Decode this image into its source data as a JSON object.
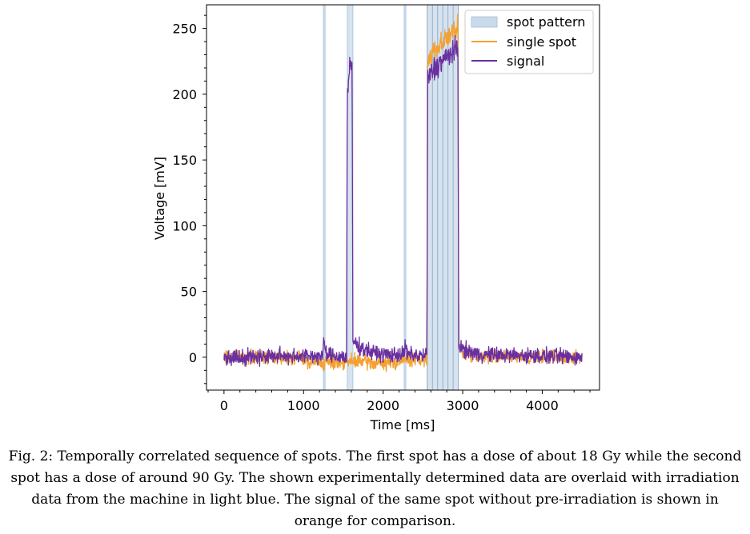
{
  "caption": "Fig. 2: Temporally correlated sequence of spots. The first spot has a dose of about 18 Gy while the second spot has a dose of around 90 Gy. The shown experimentally determined data are overlaid with irradiation data from the machine in light blue. The signal of the same spot without pre-irradiation is shown in orange for comparison.",
  "chart_data": {
    "type": "line",
    "xlabel": "Time [ms]",
    "ylabel": "Voltage [mV]",
    "xlim": [
      -220,
      4720
    ],
    "ylim": [
      -25,
      268
    ],
    "xticks": [
      0,
      1000,
      2000,
      3000,
      4000
    ],
    "yticks": [
      0,
      50,
      100,
      150,
      200,
      250
    ],
    "legend_position": "top-right",
    "grid": false,
    "colors": {
      "spot_pattern_fill": "#c9daea",
      "spot_pattern_line": "#aec8df",
      "single_spot": "#f5a030",
      "signal": "#6a2fa0"
    },
    "spot_pattern": {
      "name": "spot pattern",
      "bands": [
        [
          1250,
          1260
        ],
        [
          1550,
          1620
        ],
        [
          2265,
          2275
        ],
        [
          2555,
          2945
        ]
      ],
      "lines": [
        2555,
        2620,
        2685,
        2750,
        2815,
        2880,
        2945
      ]
    },
    "series": [
      {
        "name": "single spot",
        "points": [
          [
            0,
            0
          ],
          [
            1000,
            0
          ],
          [
            1050,
            -4
          ],
          [
            1500,
            -4
          ],
          [
            1700,
            -3
          ],
          [
            2000,
            -5
          ],
          [
            2300,
            -2
          ],
          [
            2550,
            -2
          ],
          [
            2560,
            225
          ],
          [
            2620,
            232
          ],
          [
            2700,
            237
          ],
          [
            2800,
            243
          ],
          [
            2900,
            248
          ],
          [
            2940,
            250
          ],
          [
            2950,
            10
          ],
          [
            3000,
            3
          ],
          [
            3200,
            1
          ],
          [
            4000,
            0
          ],
          [
            4500,
            0
          ]
        ]
      },
      {
        "name": "signal",
        "points": [
          [
            0,
            0
          ],
          [
            800,
            1
          ],
          [
            1240,
            1
          ],
          [
            1260,
            13
          ],
          [
            1280,
            2
          ],
          [
            1540,
            0
          ],
          [
            1550,
            200
          ],
          [
            1580,
            218
          ],
          [
            1610,
            222
          ],
          [
            1620,
            12
          ],
          [
            1700,
            8
          ],
          [
            1850,
            4
          ],
          [
            2000,
            2
          ],
          [
            2260,
            2
          ],
          [
            2280,
            10
          ],
          [
            2300,
            2
          ],
          [
            2550,
            1
          ],
          [
            2560,
            212
          ],
          [
            2650,
            220
          ],
          [
            2750,
            226
          ],
          [
            2850,
            231
          ],
          [
            2940,
            234
          ],
          [
            2950,
            10
          ],
          [
            3000,
            6
          ],
          [
            3200,
            2
          ],
          [
            4000,
            1
          ],
          [
            4500,
            0
          ]
        ]
      }
    ]
  }
}
